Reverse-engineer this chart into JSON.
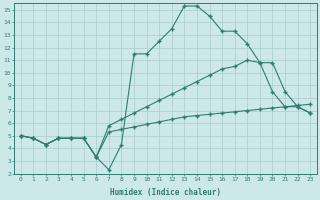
{
  "xlabel": "Humidex (Indice chaleur)",
  "xlim": [
    -0.5,
    23.5
  ],
  "ylim": [
    2,
    15.5
  ],
  "xticks": [
    0,
    1,
    2,
    3,
    4,
    5,
    6,
    7,
    8,
    9,
    10,
    11,
    12,
    13,
    14,
    15,
    16,
    17,
    18,
    19,
    20,
    21,
    22,
    23
  ],
  "yticks": [
    2,
    3,
    4,
    5,
    6,
    7,
    8,
    9,
    10,
    11,
    12,
    13,
    14,
    15
  ],
  "bg_color": "#cde8e8",
  "line_color": "#2e7d72",
  "grid_color": "#aacccc",
  "lines": [
    {
      "x": [
        0,
        1,
        2,
        3,
        4,
        5,
        6,
        7,
        8,
        9,
        10,
        11,
        12,
        13,
        14,
        15,
        16,
        17,
        18,
        19,
        20,
        21,
        22,
        23
      ],
      "y": [
        5,
        4.8,
        4.3,
        4.8,
        4.8,
        4.8,
        3.3,
        2.3,
        4.3,
        11.5,
        11.5,
        12.5,
        13.5,
        15.3,
        15.3,
        14.5,
        13.3,
        13.3,
        12.3,
        10.8,
        8.5,
        7.3,
        7.3,
        6.8
      ]
    },
    {
      "x": [
        0,
        1,
        2,
        3,
        4,
        5,
        6,
        7,
        8,
        9,
        10,
        11,
        12,
        13,
        14,
        15,
        16,
        17,
        18,
        19,
        20,
        21,
        22,
        23
      ],
      "y": [
        5,
        4.8,
        4.3,
        4.8,
        4.8,
        4.8,
        3.3,
        5.8,
        6.3,
        6.8,
        7.3,
        7.8,
        8.3,
        8.8,
        9.3,
        9.8,
        10.3,
        10.5,
        11.0,
        10.8,
        10.8,
        8.5,
        7.3,
        6.8
      ]
    },
    {
      "x": [
        0,
        1,
        2,
        3,
        4,
        5,
        6,
        7,
        8,
        9,
        10,
        11,
        12,
        13,
        14,
        15,
        16,
        17,
        18,
        19,
        20,
        21,
        22,
        23
      ],
      "y": [
        5,
        4.8,
        4.3,
        4.8,
        4.8,
        4.8,
        3.3,
        5.3,
        5.5,
        5.7,
        5.9,
        6.1,
        6.3,
        6.5,
        6.6,
        6.7,
        6.8,
        6.9,
        7.0,
        7.1,
        7.2,
        7.3,
        7.4,
        7.5
      ]
    }
  ]
}
